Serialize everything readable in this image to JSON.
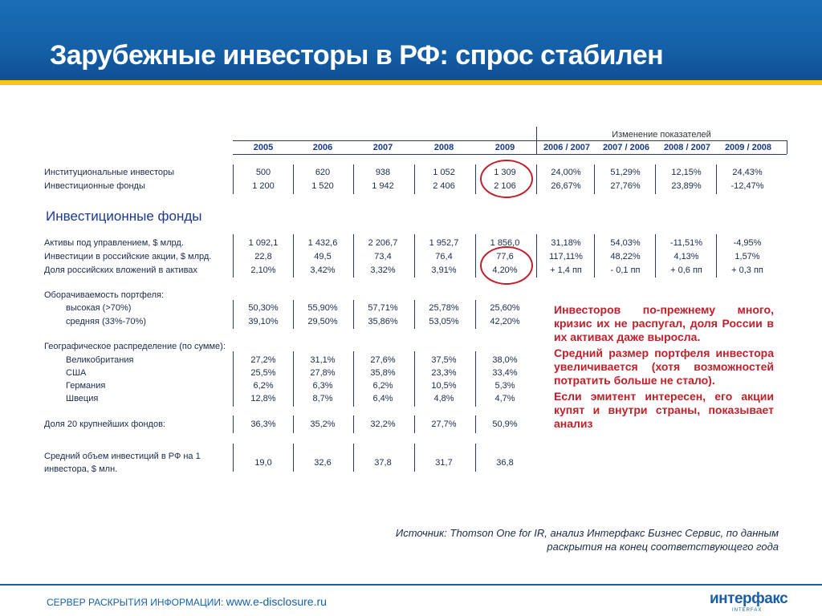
{
  "title": "Зарубежные инвесторы в РФ: спрос стабилен",
  "change_header": "Изменение показателей",
  "years": [
    "2005",
    "2006",
    "2007",
    "2008",
    "2009"
  ],
  "change_periods": [
    "2006 / 2007",
    "2007 / 2006",
    "2008 / 2007",
    "2009 / 2008"
  ],
  "section_title": "Инвестиционные фонды",
  "rows": [
    {
      "label": "Институциональные инвесторы",
      "values": [
        "500",
        "620",
        "938",
        "1 052",
        "1 309"
      ],
      "changes": [
        "24,00%",
        "51,29%",
        "12,15%",
        "24,43%"
      ]
    },
    {
      "label": "Инвестиционные фонды",
      "values": [
        "1 200",
        "1 520",
        "1 942",
        "2 406",
        "2 106"
      ],
      "changes": [
        "26,67%",
        "27,76%",
        "23,89%",
        "-12,47%"
      ]
    },
    {
      "label": "Активы под управлением, $ млрд.",
      "values": [
        "1 092,1",
        "1 432,6",
        "2 206,7",
        "1 952,7",
        "1 856,0"
      ],
      "changes": [
        "31,18%",
        "54,03%",
        "-11,51%",
        "-4,95%"
      ]
    },
    {
      "label": "Инвестиции в российские акции, $ млрд.",
      "values": [
        "22,8",
        "49,5",
        "73,4",
        "76,4",
        "77,6"
      ],
      "changes": [
        "117,11%",
        "48,22%",
        "4,13%",
        "1,57%"
      ]
    },
    {
      "label": "Доля российских вложений в активах",
      "values": [
        "2,10%",
        "3,42%",
        "3,32%",
        "3,91%",
        "4,20%"
      ],
      "changes": [
        "+ 1,4 пп",
        "- 0,1 пп",
        "+ 0,6 пп",
        "+ 0,3 пп"
      ]
    },
    {
      "label": "Оборачиваемость портфеля:",
      "values": [],
      "changes": []
    },
    {
      "label": "высокая (>70%)",
      "values": [
        "50,30%",
        "55,90%",
        "57,71%",
        "25,78%",
        "25,60%"
      ],
      "changes": []
    },
    {
      "label": "средняя (33%-70%)",
      "values": [
        "39,10%",
        "29,50%",
        "35,86%",
        "53,05%",
        "42,20%"
      ],
      "changes": []
    },
    {
      "label": "Географическое распределение (по сумме):",
      "values": [],
      "changes": []
    },
    {
      "label": "Великобритания",
      "values": [
        "27,2%",
        "31,1%",
        "27,6%",
        "37,5%",
        "38,0%"
      ],
      "changes": []
    },
    {
      "label": "США",
      "values": [
        "25,5%",
        "27,8%",
        "35,8%",
        "23,3%",
        "33,4%"
      ],
      "changes": []
    },
    {
      "label": "Германия",
      "values": [
        "6,2%",
        "6,3%",
        "6,2%",
        "10,5%",
        "5,3%"
      ],
      "changes": []
    },
    {
      "label": "Швеция",
      "values": [
        "12,8%",
        "8,7%",
        "6,4%",
        "4,8%",
        "4,7%"
      ],
      "changes": []
    },
    {
      "label": "Доля 20 крупнейших фондов:",
      "values": [
        "36,3%",
        "35,2%",
        "32,2%",
        "27,7%",
        "50,9%"
      ],
      "changes": []
    },
    {
      "label": "Средний объем инвестиций в РФ на 1",
      "label2": "инвестора, $ млн.",
      "values": [
        "19,0",
        "32,6",
        "37,8",
        "31,7",
        "36,8"
      ],
      "changes": []
    }
  ],
  "callout": [
    "Инвесторов по-прежнему много, кризис их не распугал, доля России в их активах даже выросла.",
    "Средний размер портфеля инвестора увеличивается (хотя возможностей потратить больше не стало).",
    "Если эмитент интересен, его акции купят и внутри страны, показывает анализ"
  ],
  "source_line1": "Источник: Thomson One for IR, анализ Интерфакс Бизнес Сервис, по данным",
  "source_line2": "раскрытия на конец соответствующего года",
  "footer_label": "СЕРВЕР РАСКРЫТИЯ ИНФОРМАЦИИ:",
  "footer_url": "www.e-disclosure.ru",
  "logo_text": "интерфакс",
  "logo_sub": "INTERFAX"
}
